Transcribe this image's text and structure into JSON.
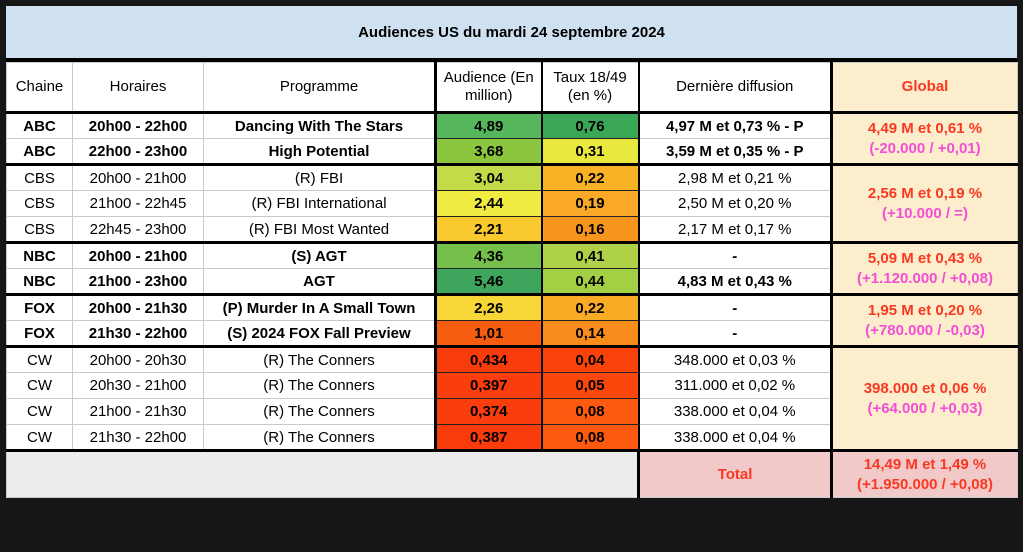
{
  "title": "Audiences US du mardi 24 septembre 2024",
  "columns": [
    "Chaine",
    "Horaires",
    "Programme",
    "Audience (En million)",
    "Taux 18/49 (en %)",
    "Dernière diffusion",
    "Global"
  ],
  "colors": {
    "title_bg": "#cfe0f0",
    "global_bg": "#fcedcc",
    "total_bg": "#f2c9c9",
    "empty_bg": "#ececec",
    "red_text": "#f93822",
    "magenta_text": "#f44ed6",
    "frame": "#161616"
  },
  "groups": [
    {
      "channel": "ABC",
      "bold": true,
      "rows": [
        {
          "chaine": "ABC",
          "horaires": "20h00 - 22h00",
          "programme": "Dancing With The Stars",
          "audience": "4,89",
          "audience_color": "#55b65c",
          "taux": "0,76",
          "taux_color": "#3aa757",
          "diffusion": "4,97 M et 0,73 % - P"
        },
        {
          "chaine": "ABC",
          "horaires": "22h00 - 23h00",
          "programme": "High Potential",
          "audience": "3,68",
          "audience_color": "#8cc63f",
          "taux": "0,31",
          "taux_color": "#e9e83e",
          "diffusion": "3,59 M et 0,35 % - P"
        }
      ],
      "global_line1": "4,49 M et 0,61 %",
      "global_line2": "(-20.000 / +0,01)"
    },
    {
      "channel": "CBS",
      "bold": false,
      "rows": [
        {
          "chaine": "CBS",
          "horaires": "20h00 - 21h00",
          "programme": "(R) FBI",
          "audience": "3,04",
          "audience_color": "#c3da49",
          "taux": "0,22",
          "taux_color": "#f9b226",
          "diffusion": "2,98 M et 0,21 %"
        },
        {
          "chaine": "CBS",
          "horaires": "21h00 - 22h45",
          "programme": "(R) FBI International",
          "audience": "2,44",
          "audience_color": "#f0ec42",
          "taux": "0,19",
          "taux_color": "#f9a828",
          "diffusion": "2,50 M et 0,20 %"
        },
        {
          "chaine": "CBS",
          "horaires": "22h45 - 23h00",
          "programme": "(R) FBI Most Wanted",
          "audience": "2,21",
          "audience_color": "#f9c92e",
          "taux": "0,16",
          "taux_color": "#f8951e",
          "diffusion": "2,17 M et 0,17 %"
        }
      ],
      "global_line1": "2,56 M et 0,19 %",
      "global_line2": "(+10.000 / =)"
    },
    {
      "channel": "NBC",
      "bold": true,
      "rows": [
        {
          "chaine": "NBC",
          "horaires": "20h00 - 21h00",
          "programme": "(S) AGT",
          "audience": "4,36",
          "audience_color": "#74c04b",
          "taux": "0,41",
          "taux_color": "#aed148",
          "diffusion": "-"
        },
        {
          "chaine": "NBC",
          "horaires": "21h00 - 23h00",
          "programme": "AGT",
          "audience": "5,46",
          "audience_color": "#3fa45c",
          "taux": "0,44",
          "taux_color": "#a3cf45",
          "diffusion": "4,83 M et 0,43 %"
        }
      ],
      "global_line1": "5,09 M et 0,43 %",
      "global_line2": "(+1.120.000 / +0,08)"
    },
    {
      "channel": "FOX",
      "bold": true,
      "rows": [
        {
          "chaine": "FOX",
          "horaires": "20h00 - 21h30",
          "programme": "(P) Murder In A Small Town",
          "audience": "2,26",
          "audience_color": "#f6d737",
          "taux": "0,22",
          "taux_color": "#f9ab25",
          "diffusion": "-"
        },
        {
          "chaine": "FOX",
          "horaires": "21h30 - 22h00",
          "programme": "(S) 2024 FOX Fall Preview",
          "audience": "1,01",
          "audience_color": "#f75d10",
          "taux": "0,14",
          "taux_color": "#f88d1b",
          "diffusion": "-"
        }
      ],
      "global_line1": "1,95 M et 0,20 %",
      "global_line2": "(+780.000 / -0,03)"
    },
    {
      "channel": "CW",
      "bold": false,
      "rows": [
        {
          "chaine": "CW",
          "horaires": "20h00 - 20h30",
          "programme": "(R) The Conners",
          "audience": "0,434",
          "audience_color": "#fa3c0c",
          "taux": "0,04",
          "taux_color": "#fa420b",
          "diffusion": "348.000 et 0,03 %"
        },
        {
          "chaine": "CW",
          "horaires": "20h30 - 21h00",
          "programme": "(R) The Conners",
          "audience": "0,397",
          "audience_color": "#fa3d0c",
          "taux": "0,05",
          "taux_color": "#fa480d",
          "diffusion": "311.000 et 0,02 %"
        },
        {
          "chaine": "CW",
          "horaires": "21h00 - 21h30",
          "programme": "(R) The Conners",
          "audience": "0,374",
          "audience_color": "#fa3d0d",
          "taux": "0,08",
          "taux_color": "#fb5a10",
          "diffusion": "338.000 et 0,04 %"
        },
        {
          "chaine": "CW",
          "horaires": "21h30 - 22h00",
          "programme": "(R) The Conners",
          "audience": "0,387",
          "audience_color": "#fa3c0c",
          "taux": "0,08",
          "taux_color": "#fb5a10",
          "diffusion": "338.000 et 0,04 %"
        }
      ],
      "global_line1": "398.000 et 0,06 %",
      "global_line2": "(+64.000 / +0,03)"
    }
  ],
  "total": {
    "label": "Total",
    "line1": "14,49 M et 1,49 %",
    "line2": "(+1.950.000 / +0,08)"
  }
}
